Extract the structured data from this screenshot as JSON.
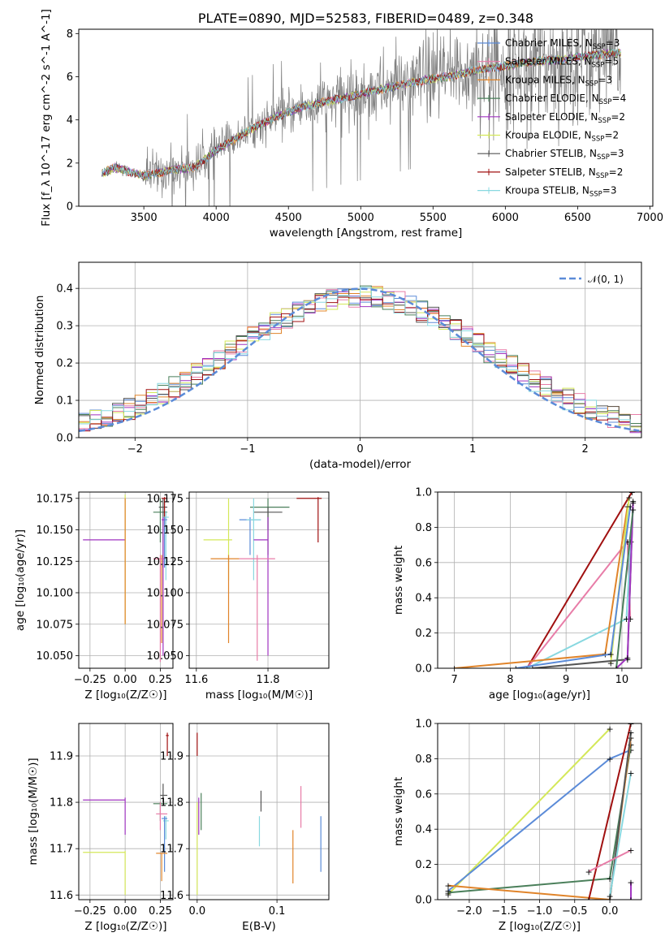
{
  "colors": {
    "Chabrier MILES": "#5b8bd8",
    "Salpeter MILES": "#e87da8",
    "Kroupa MILES": "#e0842a",
    "Chabrier ELODIE": "#4a7f5a",
    "Salpeter ELODIE": "#a035c0",
    "Kroupa ELODIE": "#d4e85a",
    "Chabrier STELIB": "#555555",
    "Salpeter STELIB": "#a01010",
    "Kroupa STELIB": "#88d8e0",
    "gaussian": "#5b8bd8"
  },
  "chart_data": [
    {
      "id": "spectrum",
      "type": "line",
      "title": "PLATE=0890, MJD=52583, FIBERID=0489, z=0.348",
      "xlabel": "wavelength [Angstrom, rest frame]",
      "ylabel": "Flux [f_λ 10^-17 erg cm^-2 s^-1 A^-1]",
      "xlim": [
        3050,
        7020
      ],
      "ylim": [
        0,
        8.2
      ],
      "xticks": [
        3500,
        4000,
        4500,
        5000,
        5500,
        6000,
        6500,
        7000
      ],
      "yticks": [
        0,
        2,
        4,
        6,
        8
      ],
      "data_range": [
        3210,
        6800
      ],
      "data_trend": {
        "x": [
          3210,
          3300,
          3500,
          3700,
          3850,
          4000,
          4200,
          4400,
          4600,
          4800,
          5000,
          5200,
          5400,
          5600,
          5800,
          6000,
          6200,
          6400,
          6600,
          6800
        ],
        "y": [
          1.5,
          1.8,
          1.4,
          1.7,
          1.8,
          2.6,
          3.4,
          4.1,
          4.6,
          4.9,
          5.2,
          5.5,
          5.8,
          6.0,
          6.3,
          6.5,
          6.7,
          6.8,
          7.0,
          7.1
        ]
      },
      "legend": [
        {
          "label": "Chabrier MILES, N",
          "sub": "SSP",
          "suffix": "=3"
        },
        {
          "label": "Salpeter MILES, N",
          "sub": "SSP",
          "suffix": "=5"
        },
        {
          "label": "Kroupa MILES, N",
          "sub": "SSP",
          "suffix": "=3"
        },
        {
          "label": "Chabrier ELODIE, N",
          "sub": "SSP",
          "suffix": "=4"
        },
        {
          "label": "Salpeter ELODIE, N",
          "sub": "SSP",
          "suffix": "=2"
        },
        {
          "label": "Kroupa ELODIE, N",
          "sub": "SSP",
          "suffix": "=2"
        },
        {
          "label": "Chabrier STELIB, N",
          "sub": "SSP",
          "suffix": "=3"
        },
        {
          "label": "Salpeter STELIB, N",
          "sub": "SSP",
          "suffix": "=2"
        },
        {
          "label": "Kroupa STELIB, N",
          "sub": "SSP",
          "suffix": "=3"
        }
      ],
      "legend_location": "upper right"
    },
    {
      "id": "residuals",
      "type": "histogram",
      "xlabel": "(data-model)/error",
      "ylabel": "Normed distribution",
      "xlim": [
        -2.5,
        2.5
      ],
      "ylim": [
        0,
        0.47
      ],
      "xticks": [
        -2,
        -1,
        0,
        1,
        2
      ],
      "yticks": [
        0.0,
        0.1,
        0.2,
        0.3,
        0.4
      ],
      "bin_width": 0.1,
      "legend": "𝒩(0, 1)",
      "legend_location": "upper right",
      "grid": true
    },
    {
      "id": "age_vs_Z",
      "type": "errorbar",
      "xlabel": "Z [log₁₀(Z/Z☉)]",
      "ylabel": "age  [log₁₀(age/yr)]",
      "xlim": [
        -0.33,
        0.34
      ],
      "ylim": [
        10.04,
        10.18
      ],
      "xticks": [
        -0.25,
        0.0,
        0.25
      ],
      "yticks": [
        10.05,
        10.075,
        10.1,
        10.125,
        10.15,
        10.175
      ],
      "grid": true
    },
    {
      "id": "age_vs_mass",
      "type": "errorbar",
      "xlabel": "mass [log₁₀(M/M☉)]",
      "ylabel": "",
      "xlim": [
        11.58,
        11.97
      ],
      "ylim": [
        10.04,
        10.18
      ],
      "xticks": [
        11.6,
        11.8
      ],
      "yticks": [
        10.05,
        10.075,
        10.1,
        10.125,
        10.15,
        10.175
      ],
      "grid": true
    },
    {
      "id": "weight_vs_age",
      "type": "line",
      "xlabel": "age  [log₁₀(age/yr)]",
      "ylabel": "mass weight",
      "xlim": [
        6.7,
        10.35
      ],
      "ylim": [
        0,
        1.0
      ],
      "xticks": [
        7,
        8,
        9,
        10
      ],
      "yticks": [
        0.0,
        0.2,
        0.4,
        0.6,
        0.8,
        1.0
      ],
      "grid": true
    },
    {
      "id": "mass_vs_Z",
      "type": "errorbar",
      "xlabel": "Z [log₁₀(Z/Z☉)]",
      "ylabel": "mass [log₁₀(M/M☉)]",
      "xlim": [
        -0.33,
        0.34
      ],
      "ylim": [
        11.59,
        11.97
      ],
      "xticks": [
        -0.25,
        0.0,
        0.25
      ],
      "yticks": [
        11.6,
        11.7,
        11.8,
        11.9
      ],
      "grid": true
    },
    {
      "id": "mass_vs_EBV",
      "type": "errorbar",
      "xlabel": "E(B-V)",
      "ylabel": "",
      "xlim": [
        -0.01,
        0.165
      ],
      "ylim": [
        11.59,
        11.97
      ],
      "xticks": [
        0.0,
        0.1
      ],
      "yticks": [
        11.6,
        11.7,
        11.8,
        11.9
      ],
      "grid": true
    },
    {
      "id": "weight_vs_Z",
      "type": "line",
      "xlabel": "Z [log₁₀(Z/Z☉)]",
      "ylabel": "mass weight",
      "xlim": [
        -2.45,
        0.45
      ],
      "ylim": [
        0,
        1.0
      ],
      "xticks": [
        -2.0,
        -1.5,
        -1.0,
        -0.5,
        0.0
      ],
      "yticks": [
        0.0,
        0.2,
        0.4,
        0.6,
        0.8,
        1.0
      ],
      "grid": true
    }
  ]
}
